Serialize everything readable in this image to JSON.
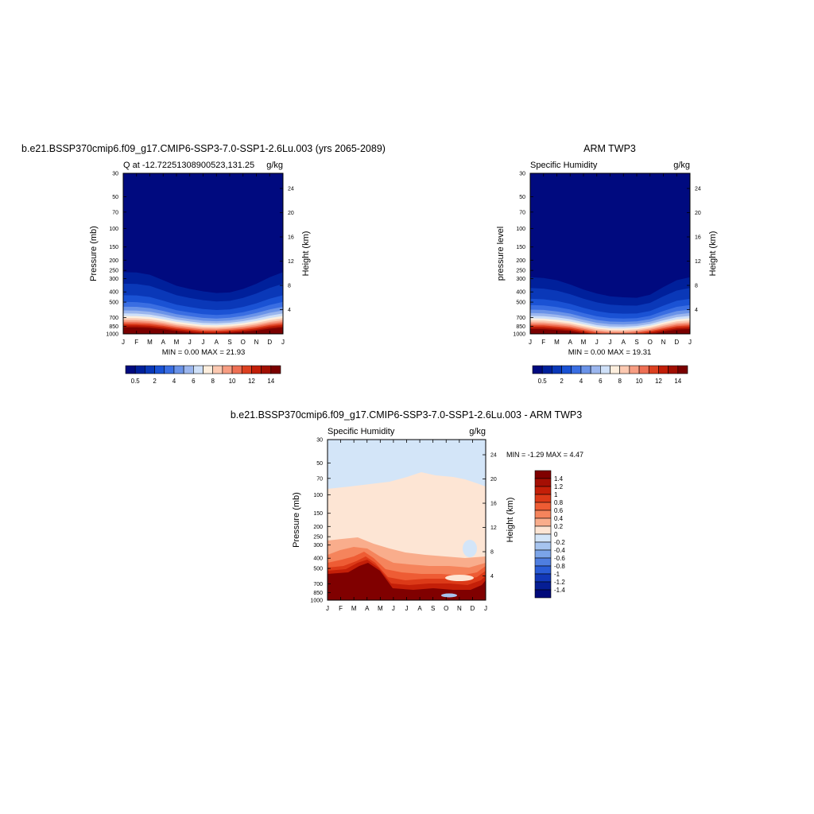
{
  "months": [
    "J",
    "F",
    "M",
    "A",
    "M",
    "J",
    "J",
    "A",
    "S",
    "O",
    "N",
    "D",
    "J"
  ],
  "pressure_ticks": [
    "30",
    "50",
    "70",
    "100",
    "150",
    "200",
    "250",
    "300",
    "400",
    "500",
    "700",
    "850",
    "1000"
  ],
  "pressure_values": [
    30,
    50,
    70,
    100,
    150,
    200,
    250,
    300,
    400,
    500,
    700,
    850,
    1000
  ],
  "height_ticks": [
    "24",
    "20",
    "16",
    "12",
    "8",
    "4"
  ],
  "height_values": [
    24,
    20,
    16,
    12,
    8,
    4
  ],
  "units": "g/kg",
  "panel1": {
    "title": "b.e21.BSSP370cmip6.f09_g17.CMIP6-SSP3-7.0-SSP1-2.6Lu.003 (yrs 2065-2089)",
    "left_string": "Q at -12.72251308900523,131.25",
    "right_string": "g/kg",
    "ylabel_left": "Pressure (mb)",
    "ylabel_right": "Height (km)",
    "minmax": "MIN =   0.00 MAX =  21.93"
  },
  "panel2": {
    "title": "ARM TWP3",
    "left_string": "Specific Humidity",
    "right_string": "g/kg",
    "ylabel_left": "pressure level",
    "ylabel_right": "Height (km)",
    "minmax": "MIN =   0.00 MAX =  19.31"
  },
  "panel3": {
    "title": "b.e21.BSSP370cmip6.f09_g17.CMIP6-SSP3-7.0-SSP1-2.6Lu.003 - ARM TWP3",
    "left_string": "Specific Humidity",
    "right_string": "g/kg",
    "ylabel_left": "Pressure (mb)",
    "ylabel_right": "Height (km)",
    "minmax": "MIN =  -1.29 MAX =   4.47"
  },
  "colorbar_q": {
    "labels": [
      "0.5",
      "2",
      "4",
      "6",
      "8",
      "10",
      "12",
      "14"
    ],
    "colors": [
      "#000a7f",
      "#00209b",
      "#0a38b8",
      "#1a52d4",
      "#3a6ee2",
      "#6a93e8",
      "#9bb6ee",
      "#cfe0f8",
      "#fdeedd",
      "#fcc9b1",
      "#f79d82",
      "#ee6f54",
      "#dc4020",
      "#c21e08",
      "#a10f02",
      "#7a0000"
    ]
  },
  "colorbar_diff": {
    "labels": [
      "1.4",
      "1.2",
      "1",
      "0.8",
      "0.6",
      "0.4",
      "0.2",
      "0",
      "-0.2",
      "-0.4",
      "-0.6",
      "-0.8",
      "-1",
      "-1.2",
      "-1.4"
    ],
    "colors": [
      "#800000",
      "#a50f04",
      "#c41f08",
      "#dc3a18",
      "#ee5c34",
      "#f5845c",
      "#f9ad8c",
      "#fde5d4",
      "#d3e5f8",
      "#a6c4ef",
      "#7ba4e8",
      "#4f7ee0",
      "#2a5cd6",
      "#1238b8",
      "#061e94",
      "#00097a"
    ]
  },
  "chart_data": [
    {
      "type": "heatmap",
      "title": "b.e21.BSSP370cmip6.f09_g17.CMIP6-SSP3-7.0-SSP1-2.6Lu.003 (yrs 2065-2089)",
      "subtitle": "Q at -12.72251308900523,131.25",
      "units": "g/kg",
      "xlabel": "",
      "ylabel": "Pressure (mb)",
      "y2label": "Height (km)",
      "x": [
        "J",
        "F",
        "M",
        "A",
        "M",
        "J",
        "J",
        "A",
        "S",
        "O",
        "N",
        "D",
        "J"
      ],
      "ylim": [
        1000,
        30
      ],
      "yscale": "log",
      "contour_levels": [
        0.5,
        1,
        2,
        3,
        4,
        5,
        6,
        7,
        8,
        9,
        10,
        11,
        12,
        13,
        14
      ],
      "min": 0.0,
      "max": 21.93,
      "surface_q": [
        20.5,
        20.5,
        20,
        19,
        17,
        15.5,
        14,
        14,
        15,
        16,
        17.5,
        19.5,
        20.5
      ],
      "moist_top_hpa": [
        260,
        262,
        275,
        310,
        350,
        375,
        395,
        410,
        405,
        375,
        335,
        290,
        260
      ]
    },
    {
      "type": "heatmap",
      "title": "ARM TWP3",
      "subtitle": "Specific Humidity",
      "units": "g/kg",
      "xlabel": "",
      "ylabel": "pressure level",
      "y2label": "Height (km)",
      "x": [
        "J",
        "F",
        "M",
        "A",
        "M",
        "J",
        "J",
        "A",
        "S",
        "O",
        "N",
        "D",
        "J"
      ],
      "ylim": [
        1000,
        30
      ],
      "yscale": "log",
      "contour_levels": [
        0.5,
        1,
        2,
        3,
        4,
        5,
        6,
        7,
        8,
        9,
        10,
        11,
        12,
        13,
        14
      ],
      "min": 0.0,
      "max": 19.31,
      "surface_q": [
        19,
        19,
        18,
        17,
        14.5,
        12,
        11,
        11,
        12,
        14,
        16.5,
        18.5,
        19
      ],
      "moist_top_hpa": [
        290,
        295,
        310,
        340,
        380,
        415,
        440,
        450,
        455,
        425,
        360,
        310,
        290
      ]
    },
    {
      "type": "heatmap",
      "title": "b.e21.BSSP370cmip6.f09_g17.CMIP6-SSP3-7.0-SSP1-2.6Lu.003 - ARM TWP3",
      "subtitle": "Specific Humidity",
      "units": "g/kg",
      "xlabel": "",
      "ylabel": "Pressure (mb)",
      "y2label": "Height (km)",
      "x": [
        "J",
        "F",
        "M",
        "A",
        "M",
        "J",
        "J",
        "A",
        "S",
        "O",
        "N",
        "D",
        "J"
      ],
      "ylim": [
        1000,
        30
      ],
      "yscale": "log",
      "contour_levels": [
        -1.4,
        -1.2,
        -1,
        -0.8,
        -0.6,
        -0.4,
        -0.2,
        0,
        0.2,
        0.4,
        0.6,
        0.8,
        1,
        1.2,
        1.4
      ],
      "min": -1.29,
      "max": 4.47
    }
  ]
}
